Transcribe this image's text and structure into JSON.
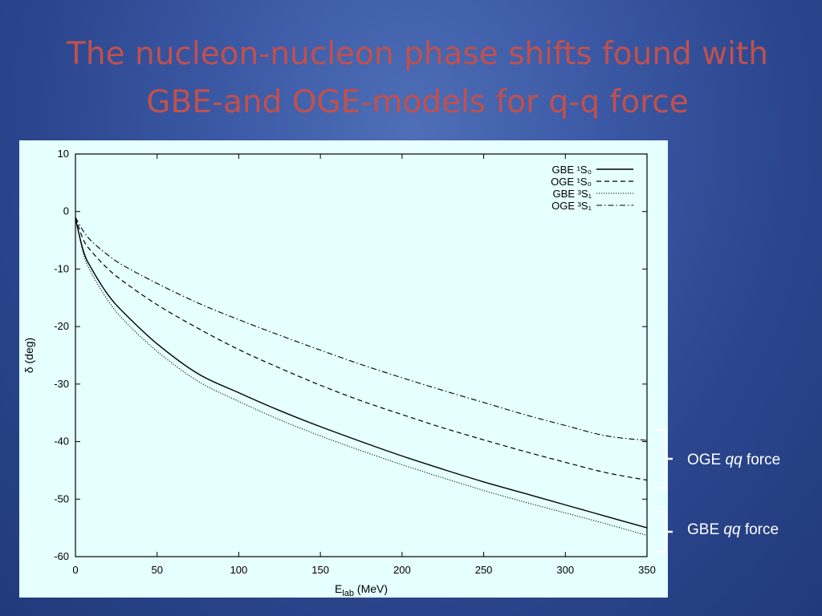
{
  "slide": {
    "title_line1": "The nucleon-nucleon phase shifts found with",
    "title_line2": "GBE-and OGE-models for q-q force"
  },
  "annotations": {
    "oge": {
      "prefix": "OGE ",
      "italic": "qq",
      "suffix": " force"
    },
    "gbe": {
      "prefix": "GBE ",
      "italic": "qq",
      "suffix": " force"
    }
  },
  "colors": {
    "title": "#c0504d",
    "plot_background": "#e6ffff",
    "curves": "#000000",
    "annotation_text": "#ffffff"
  },
  "chart_data": {
    "type": "line",
    "xlabel": "E_lab (MeV)",
    "ylabel": "δ (deg)",
    "xlim": [
      0,
      350
    ],
    "ylim": [
      -60,
      10
    ],
    "xticks": [
      0,
      50,
      100,
      150,
      200,
      250,
      300,
      350
    ],
    "yticks": [
      10,
      0,
      -10,
      -20,
      -30,
      -40,
      -50,
      -60
    ],
    "grid": false,
    "legend_position": "top-right",
    "x": [
      0,
      5,
      10,
      20,
      30,
      50,
      75,
      100,
      125,
      150,
      175,
      200,
      225,
      250,
      275,
      300,
      325,
      350
    ],
    "series": [
      {
        "name": "GBE ¹S₀",
        "style": "solid",
        "values": [
          -1.2,
          -7,
          -10,
          -14.5,
          -17.7,
          -23,
          -28.2,
          -31.5,
          -34.6,
          -37.4,
          -40,
          -42.5,
          -44.8,
          -47,
          -49,
          -51,
          -53,
          -55
        ]
      },
      {
        "name": "OGE ¹S₀",
        "style": "dashed",
        "values": [
          -1,
          -5,
          -7,
          -10,
          -12.3,
          -16.2,
          -20.3,
          -24,
          -27.2,
          -30.2,
          -32.9,
          -35.3,
          -37.6,
          -39.7,
          -41.7,
          -43.6,
          -45.4,
          -46.7
        ]
      },
      {
        "name": "GBE ³S₁",
        "style": "dotted",
        "values": [
          -1.2,
          -7.5,
          -10.8,
          -15.5,
          -19,
          -24.3,
          -29.5,
          -33,
          -36.2,
          -39,
          -41.6,
          -44,
          -46.3,
          -48.5,
          -50.5,
          -52.4,
          -54.3,
          -56.3
        ]
      },
      {
        "name": "OGE ³S₁",
        "style": "dashdot",
        "values": [
          -1,
          -3.5,
          -5.2,
          -7.6,
          -9.5,
          -12.5,
          -15.9,
          -18.8,
          -21.5,
          -24.1,
          -26.6,
          -28.9,
          -31.1,
          -33.2,
          -35.3,
          -37.2,
          -39,
          -39.8
        ]
      }
    ]
  }
}
